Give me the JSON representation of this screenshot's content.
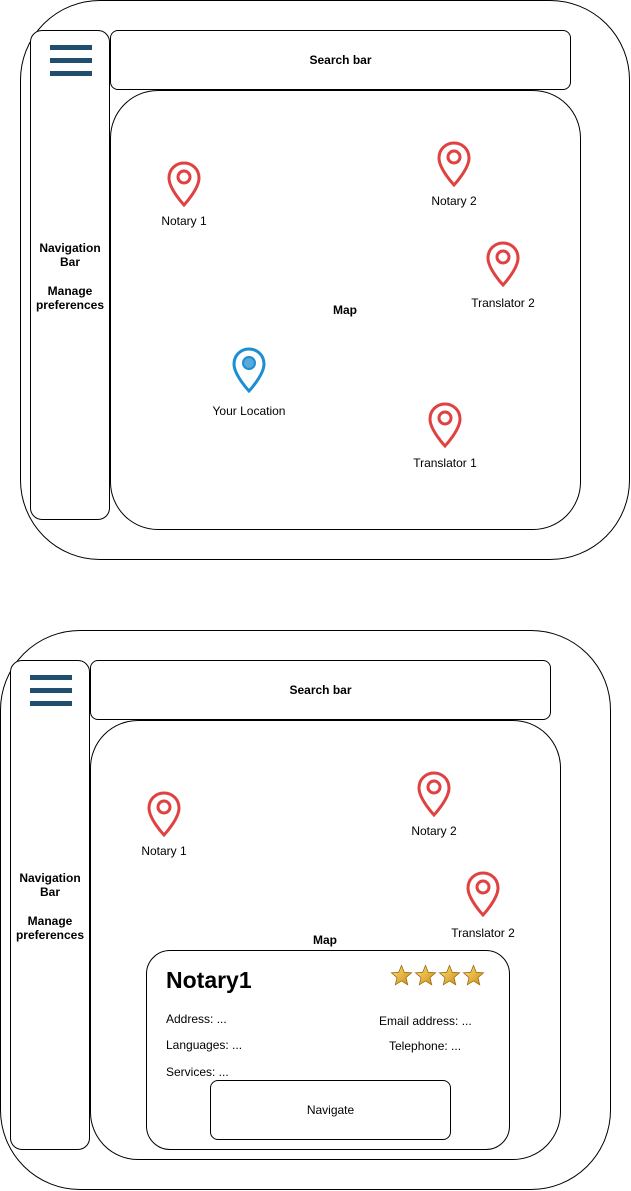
{
  "screen1": {
    "search_label": "Search bar",
    "nav": {
      "title_line1": "Navigation",
      "title_line2": "Bar",
      "pref_line1": "Manage",
      "pref_line2": "preferences"
    },
    "map_label": "Map",
    "pins": [
      {
        "label": "Notary 1",
        "color": "#e04141"
      },
      {
        "label": "Notary 2",
        "color": "#e04141"
      },
      {
        "label": "Translator 2",
        "color": "#e04141"
      },
      {
        "label": "Translator 1",
        "color": "#e04141"
      },
      {
        "label": "Your Location",
        "color": "#1b8fd2"
      }
    ]
  },
  "screen2": {
    "search_label": "Search bar",
    "nav": {
      "title_line1": "Navigation",
      "title_line2": "Bar",
      "pref_line1": "Manage",
      "pref_line2": "preferences"
    },
    "map_label": "Map",
    "pins": [
      {
        "label": "Notary 1",
        "color": "#e04141"
      },
      {
        "label": "Notary 2",
        "color": "#e04141"
      },
      {
        "label": "Translator 2",
        "color": "#e04141"
      }
    ],
    "card": {
      "title": "Notary1",
      "rating": 4,
      "address": "Address: ...",
      "languages": "Languages: ...",
      "services": "Services: ...",
      "email": "Email address: ...",
      "telephone": "Telephone: ...",
      "navigate_label": "Navigate"
    }
  }
}
